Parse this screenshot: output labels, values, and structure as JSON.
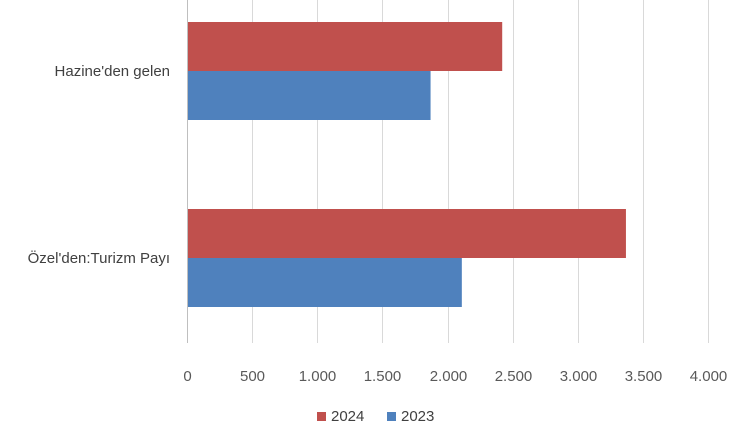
{
  "chart_data": {
    "type": "bar",
    "orientation": "horizontal",
    "categories": [
      "Hazine'den gelen",
      "Özel'den:Turizm Payı"
    ],
    "series": [
      {
        "name": "2024",
        "color": "#c0504d",
        "values": [
          2420,
          3370
        ]
      },
      {
        "name": "2023",
        "color": "#4f81bd",
        "values": [
          1870,
          2110
        ]
      }
    ],
    "xlim": [
      0,
      4000
    ],
    "x_ticks": [
      "0",
      "500",
      "1.000",
      "1.500",
      "2.000",
      "2.500",
      "3.000",
      "3.500",
      "4.000"
    ],
    "grid": true,
    "legend_position": "bottom",
    "title": "",
    "xlabel": "",
    "ylabel": ""
  }
}
